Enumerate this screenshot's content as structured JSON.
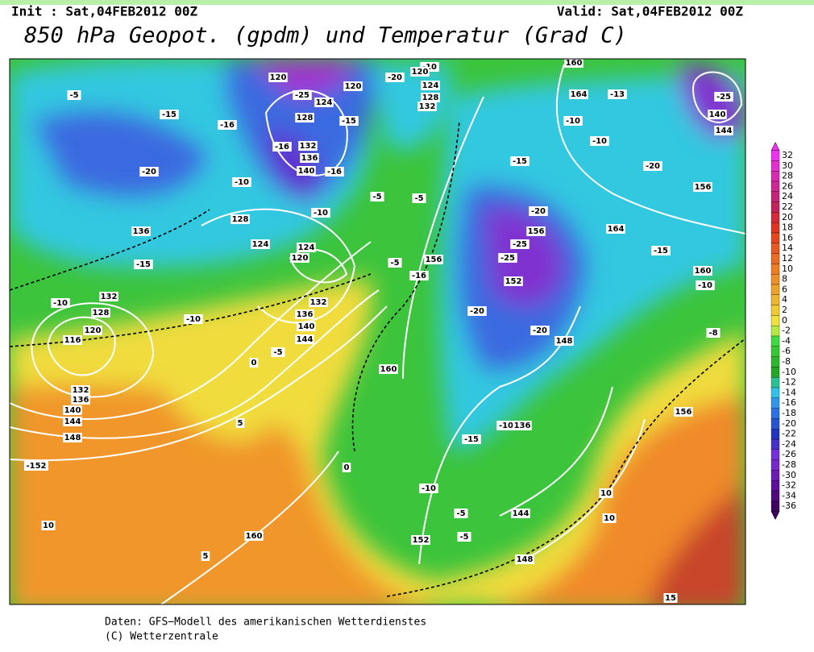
{
  "header": {
    "init": "Init : Sat,04FEB2012 00Z",
    "valid": "Valid: Sat,04FEB2012 00Z",
    "title": "850 hPa Geopot. (gpdm) und Temperatur (Grad C)"
  },
  "map": {
    "contour_labels": [
      "-5",
      "-15",
      "-16",
      "-20",
      "-10",
      "136",
      "-15",
      "-10",
      "132",
      "128",
      "120",
      "116",
      "-10",
      "132",
      "136",
      "140",
      "144",
      "-5",
      "0",
      "132",
      "136",
      "140",
      "144",
      "148",
      "-152",
      "10",
      "5",
      "160",
      "5",
      "0",
      "160",
      "156",
      "-16",
      "-20",
      "-20",
      "156",
      "-25",
      "-25",
      "152",
      "-20",
      "148",
      "164",
      "-15",
      "160",
      "-10",
      "-8",
      "156",
      "10",
      "10",
      "15",
      "144",
      "148",
      "152",
      "-5",
      "-5",
      "-10",
      "-15",
      "-10",
      "136",
      "-20",
      "-13",
      "164",
      "-10",
      "-10",
      "-15",
      "156",
      "140",
      "144",
      "-25",
      "160",
      "-10",
      "120",
      "-20",
      "124",
      "128",
      "132",
      "-15",
      "-16",
      "-10",
      "-5",
      "-5",
      "128",
      "124",
      "124",
      "120",
      "-5",
      "120",
      "-25",
      "124",
      "128",
      "132",
      "136",
      "140",
      "-16",
      "120"
    ]
  },
  "colorbar": {
    "labels": [
      32,
      30,
      28,
      26,
      24,
      22,
      20,
      18,
      16,
      14,
      12,
      10,
      8,
      6,
      4,
      2,
      0,
      -2,
      -4,
      -6,
      -8,
      -10,
      -12,
      -14,
      -16,
      -18,
      -20,
      -22,
      -24,
      -26,
      -28,
      -30,
      -32,
      -34,
      -36
    ]
  },
  "footer": {
    "source": "Daten: GFS−Modell des amerikanischen Wetterdienstes",
    "copyright": "(C) Wetterzentrale"
  }
}
